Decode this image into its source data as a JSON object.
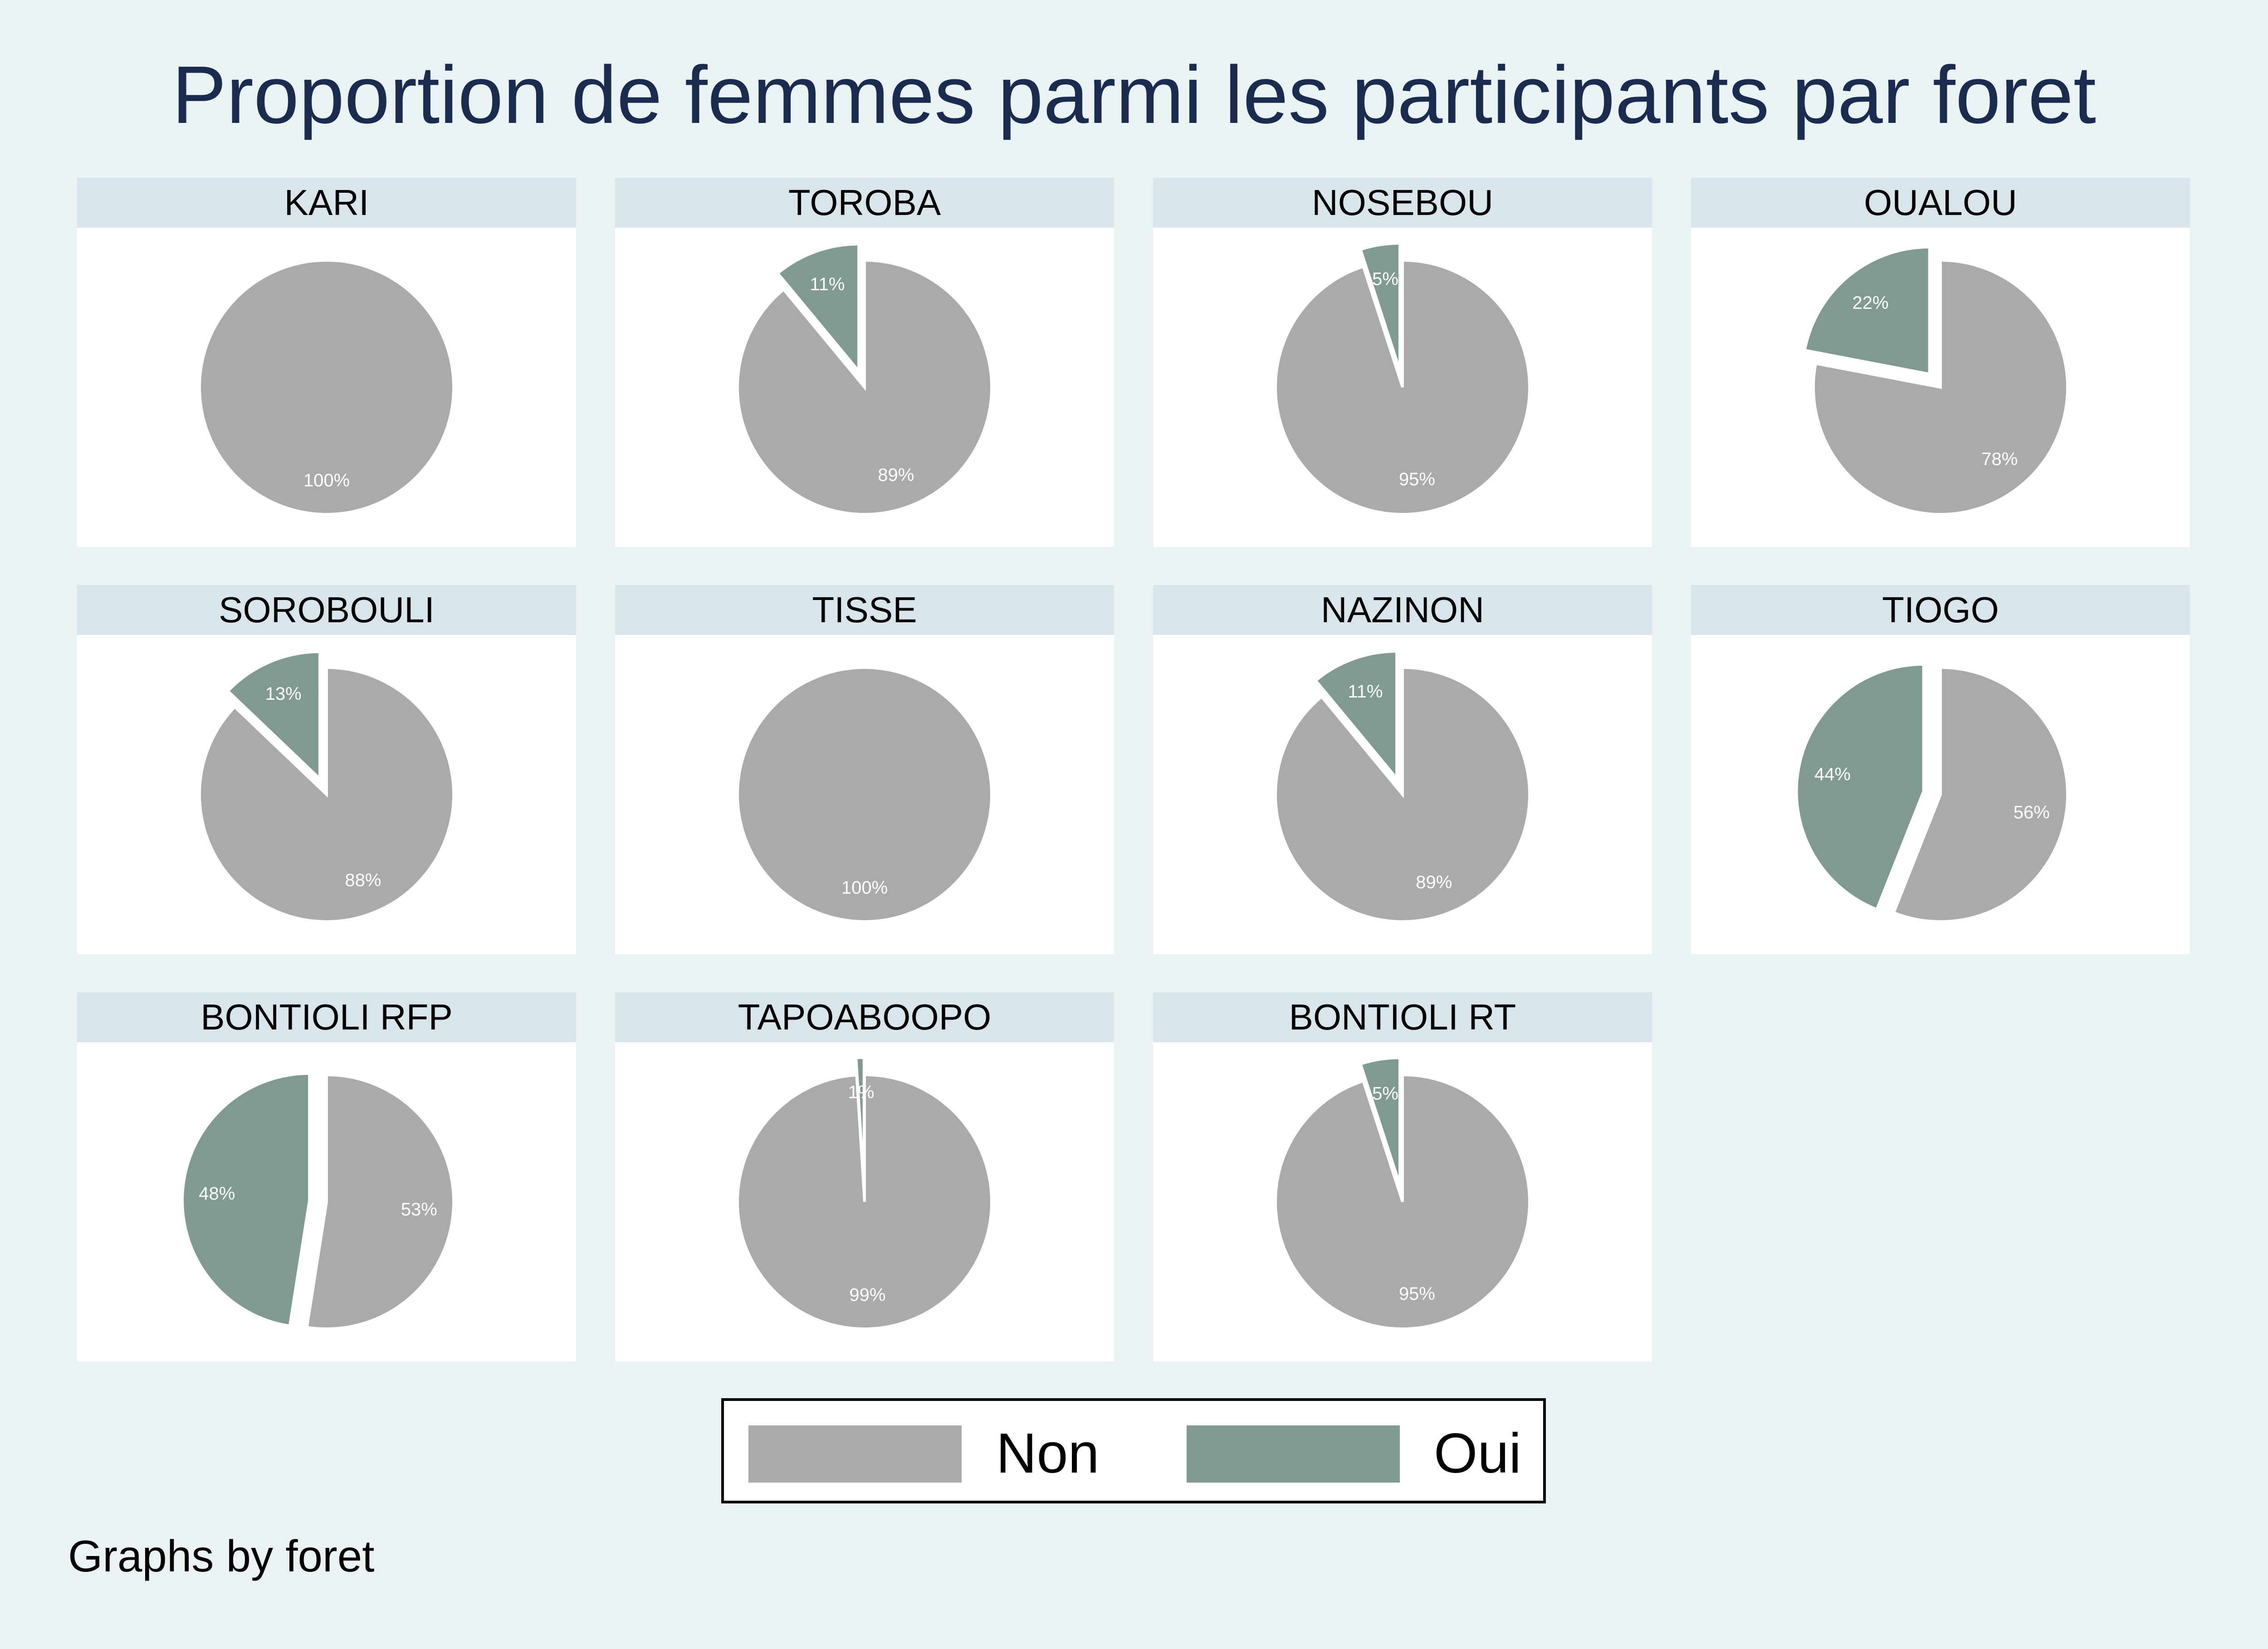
{
  "chart_data": {
    "type": "pie",
    "title": "Proportion de femmes parmi les participants par foret",
    "note": "Graphs by foret",
    "categories": [
      "Non",
      "Oui"
    ],
    "colors": {
      "Non": "#aaaaaa",
      "Oui": "#7f9a8f"
    },
    "legend": {
      "placement": "bottom",
      "items": [
        "Non",
        "Oui"
      ]
    },
    "panels": [
      {
        "name": "KARI",
        "values": [
          100,
          0
        ],
        "labels": [
          "100%",
          ""
        ]
      },
      {
        "name": "TOROBA",
        "values": [
          89,
          11
        ],
        "labels": [
          "89%",
          "11%"
        ]
      },
      {
        "name": "NOSEBOU",
        "values": [
          95,
          5
        ],
        "labels": [
          "95%",
          "5%"
        ]
      },
      {
        "name": "OUALOU",
        "values": [
          78,
          22
        ],
        "labels": [
          "78%",
          "22%"
        ]
      },
      {
        "name": "SOROBOULI",
        "values": [
          88,
          13
        ],
        "labels": [
          "88%",
          "13%"
        ]
      },
      {
        "name": "TISSE",
        "values": [
          100,
          0
        ],
        "labels": [
          "100%",
          ""
        ]
      },
      {
        "name": "NAZINON",
        "values": [
          89,
          11
        ],
        "labels": [
          "89%",
          "11%"
        ]
      },
      {
        "name": "TIOGO",
        "values": [
          56,
          44
        ],
        "labels": [
          "56%",
          "44%"
        ]
      },
      {
        "name": "BONTIOLI RFP",
        "values": [
          53,
          48
        ],
        "labels": [
          "53%",
          "48%"
        ]
      },
      {
        "name": "TAPOABOOPO",
        "values": [
          99,
          1
        ],
        "labels": [
          "99%",
          "1%"
        ]
      },
      {
        "name": "BONTIOLI RT",
        "values": [
          95,
          5
        ],
        "labels": [
          "95%",
          "5%"
        ]
      }
    ]
  }
}
